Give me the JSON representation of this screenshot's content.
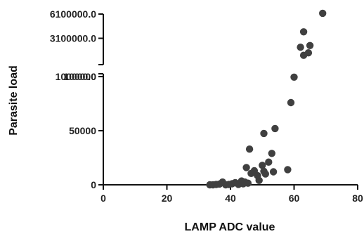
{
  "chart_data": {
    "type": "scatter",
    "title": "",
    "xlabel": "LAMP ADC value",
    "ylabel": "Parasite load",
    "xlim": [
      0,
      80
    ],
    "x_ticks": [
      0,
      20,
      40,
      60,
      80
    ],
    "x_tick_labels": [
      "0",
      "20",
      "40",
      "60",
      "80"
    ],
    "y_axis_break": true,
    "y_lower_range": [
      0,
      100000
    ],
    "y_lower_ticks": [
      0,
      50000,
      100000
    ],
    "y_lower_tick_labels": [
      "0",
      "50000",
      "100000"
    ],
    "y_upper_range": [
      100000,
      6100000
    ],
    "y_upper_ticks": [
      100000,
      3100000,
      6100000
    ],
    "y_upper_tick_labels": [
      "100000.0",
      "3100000.0",
      "6100000.0"
    ],
    "grid": false,
    "legend": "none",
    "marker_color": "#404040",
    "series": [
      {
        "values": [
          {
            "x": 33.5,
            "y": 0
          },
          {
            "x": 34.5,
            "y": 0
          },
          {
            "x": 35.5,
            "y": 300
          },
          {
            "x": 36.5,
            "y": 700
          },
          {
            "x": 37.5,
            "y": 2500
          },
          {
            "x": 38.5,
            "y": 0
          },
          {
            "x": 39.5,
            "y": 300
          },
          {
            "x": 40.5,
            "y": 1000
          },
          {
            "x": 41.5,
            "y": 2000
          },
          {
            "x": 42.5,
            "y": 400
          },
          {
            "x": 43.5,
            "y": 3500
          },
          {
            "x": 44.0,
            "y": 900
          },
          {
            "x": 44.5,
            "y": 2500
          },
          {
            "x": 45.0,
            "y": 16000
          },
          {
            "x": 45.5,
            "y": 1500
          },
          {
            "x": 46.0,
            "y": 33000
          },
          {
            "x": 46.5,
            "y": 10500
          },
          {
            "x": 47.5,
            "y": 13000
          },
          {
            "x": 48.5,
            "y": 8500
          },
          {
            "x": 49.0,
            "y": 4000
          },
          {
            "x": 50.0,
            "y": 18000
          },
          {
            "x": 50.5,
            "y": 12500
          },
          {
            "x": 50.5,
            "y": 47500
          },
          {
            "x": 51.0,
            "y": 10000
          },
          {
            "x": 52.0,
            "y": 21000
          },
          {
            "x": 53.0,
            "y": 29000
          },
          {
            "x": 53.5,
            "y": 12000
          },
          {
            "x": 54.0,
            "y": 52000
          },
          {
            "x": 58.0,
            "y": 14000
          },
          {
            "x": 59.0,
            "y": 76000
          },
          {
            "x": 60.0,
            "y": 99500
          },
          {
            "x": 62.0,
            "y": 2000000
          },
          {
            "x": 63.0,
            "y": 1000000
          },
          {
            "x": 63.0,
            "y": 3900000
          },
          {
            "x": 64.5,
            "y": 1300000
          },
          {
            "x": 65.0,
            "y": 2200000
          },
          {
            "x": 69.0,
            "y": 6200000
          }
        ]
      }
    ]
  }
}
